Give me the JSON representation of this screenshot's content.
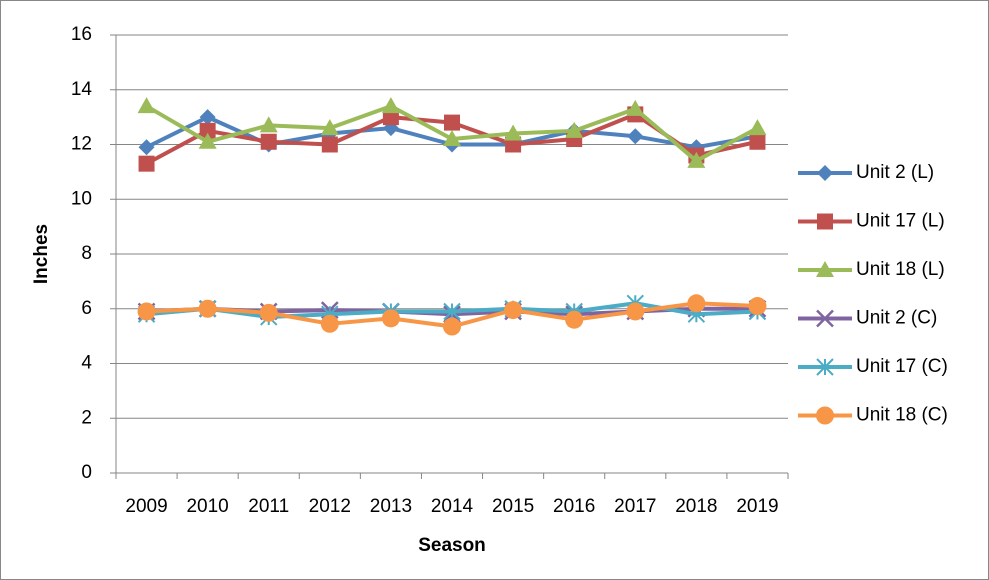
{
  "chart_data": {
    "type": "line",
    "x_label": "Season",
    "y_label": "Inches",
    "categories": [
      "2009",
      "2010",
      "2011",
      "2012",
      "2013",
      "2014",
      "2015",
      "2016",
      "2017",
      "2018",
      "2019"
    ],
    "ylim": [
      0,
      16
    ],
    "yticks": [
      0,
      2,
      4,
      6,
      8,
      10,
      12,
      14,
      16
    ],
    "grid": true,
    "legend": "right",
    "series": [
      {
        "name": "Unit 2 (L)",
        "color": "#4f81bd",
        "marker": "diamond",
        "values": [
          11.9,
          13.0,
          12.0,
          12.4,
          12.6,
          12.0,
          12.0,
          12.5,
          12.3,
          11.9,
          12.3
        ]
      },
      {
        "name": "Unit 17 (L)",
        "color": "#c0504d",
        "marker": "square",
        "values": [
          11.3,
          12.5,
          12.1,
          12.0,
          13.0,
          12.8,
          12.0,
          12.2,
          13.1,
          11.6,
          12.1
        ]
      },
      {
        "name": "Unit 18 (L)",
        "color": "#9bbb59",
        "marker": "triangle",
        "values": [
          13.4,
          12.1,
          12.7,
          12.6,
          13.4,
          12.2,
          12.4,
          12.5,
          13.3,
          11.4,
          12.6
        ]
      },
      {
        "name": "Unit 2 (C)",
        "color": "#8064a2",
        "marker": "x",
        "values": [
          5.9,
          6.0,
          5.9,
          5.95,
          5.9,
          5.8,
          5.9,
          5.8,
          5.9,
          6.0,
          6.0
        ]
      },
      {
        "name": "Unit 17 (C)",
        "color": "#4bacc6",
        "marker": "star",
        "values": [
          5.8,
          6.0,
          5.7,
          5.8,
          5.9,
          5.9,
          6.0,
          5.9,
          6.2,
          5.8,
          5.9
        ]
      },
      {
        "name": "Unit 18 (C)",
        "color": "#f79646",
        "marker": "circle",
        "values": [
          5.9,
          6.0,
          5.85,
          5.45,
          5.65,
          5.35,
          5.95,
          5.6,
          5.9,
          6.2,
          6.1
        ]
      }
    ]
  }
}
